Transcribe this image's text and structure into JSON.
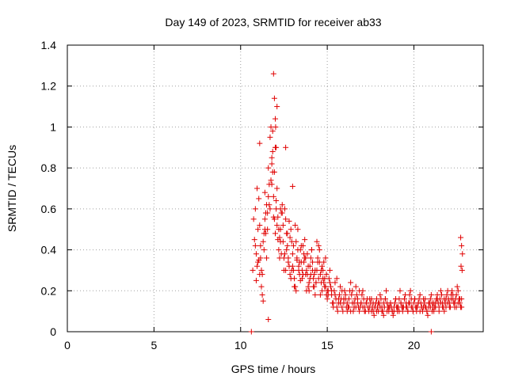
{
  "chart_data": {
    "type": "scatter",
    "title": "Day 149 of 2023, SRMTID for receiver ab33",
    "xlabel": "GPS time / hours",
    "ylabel": "SRMTID / TECUs",
    "xlim": [
      0,
      24
    ],
    "ylim": [
      0,
      1.4
    ],
    "xticks": [
      0,
      5,
      10,
      15,
      20
    ],
    "yticks": [
      0,
      0.2,
      0.4,
      0.6,
      0.8,
      1,
      1.2,
      1.4
    ],
    "xtick_labels": [
      "0",
      "5",
      "10",
      "15",
      "20"
    ],
    "ytick_labels": [
      "0",
      "0.2",
      "0.4",
      "0.6",
      "0.8",
      "1",
      "1.2",
      "1.4"
    ],
    "grid": true,
    "marker": "+",
    "color": "#e00000",
    "series": [
      {
        "name": "SRMTID",
        "x": [
          10.62,
          10.7,
          10.75,
          10.8,
          10.85,
          10.9,
          10.95,
          11.0,
          11.05,
          11.1,
          11.15,
          11.2,
          11.25,
          11.3,
          11.35,
          11.4,
          11.45,
          11.5,
          11.55,
          11.6,
          11.65,
          11.7,
          11.75,
          11.8,
          11.85,
          11.9,
          11.95,
          12.0,
          12.05,
          12.1,
          12.15,
          12.2,
          12.25,
          12.3,
          12.35,
          12.4,
          12.45,
          12.5,
          12.55,
          12.6,
          12.65,
          12.7,
          12.75,
          12.8,
          12.85,
          12.9,
          12.95,
          13.0,
          13.05,
          13.1,
          13.15,
          13.2,
          13.25,
          13.3,
          13.35,
          13.4,
          13.45,
          13.5,
          13.55,
          13.6,
          13.65,
          13.7,
          13.75,
          13.8,
          13.85,
          13.9,
          13.95,
          14.0,
          14.05,
          14.1,
          14.15,
          14.2,
          14.25,
          14.3,
          14.35,
          14.4,
          14.45,
          14.5,
          14.55,
          14.6,
          14.65,
          14.7,
          14.75,
          14.8,
          14.85,
          14.9,
          14.95,
          15.0,
          15.05,
          15.1,
          15.15,
          15.2,
          15.25,
          15.3,
          15.35,
          15.4,
          15.45,
          15.5,
          15.55,
          15.6,
          15.65,
          15.7,
          15.75,
          15.8,
          15.85,
          15.9,
          15.95,
          16.0,
          16.05,
          16.1,
          16.15,
          16.2,
          16.25,
          16.3,
          16.35,
          16.4,
          16.45,
          16.5,
          16.55,
          16.6,
          16.65,
          16.7,
          16.75,
          16.8,
          16.85,
          16.9,
          16.95,
          17.0,
          17.05,
          17.1,
          17.15,
          17.2,
          17.25,
          17.3,
          17.35,
          17.4,
          17.45,
          17.5,
          17.55,
          17.6,
          17.65,
          17.7,
          17.75,
          17.8,
          17.85,
          17.9,
          17.95,
          18.0,
          18.05,
          18.1,
          18.15,
          18.2,
          18.25,
          18.3,
          18.35,
          18.4,
          18.45,
          18.5,
          18.55,
          18.6,
          18.65,
          18.7,
          18.75,
          18.8,
          18.85,
          18.9,
          18.95,
          19.0,
          19.05,
          19.1,
          19.15,
          19.2,
          19.25,
          19.3,
          19.35,
          19.4,
          19.45,
          19.5,
          19.55,
          19.6,
          19.65,
          19.7,
          19.75,
          19.8,
          19.85,
          19.9,
          19.95,
          20.0,
          20.05,
          20.1,
          20.15,
          20.2,
          20.25,
          20.3,
          20.35,
          20.4,
          20.45,
          20.5,
          20.55,
          20.6,
          20.65,
          20.7,
          20.75,
          20.8,
          20.85,
          20.9,
          20.95,
          21.0,
          21.05,
          21.1,
          21.15,
          21.2,
          21.25,
          21.3,
          21.35,
          21.4,
          21.45,
          21.5,
          21.55,
          21.6,
          21.65,
          21.7,
          21.75,
          21.8,
          21.85,
          21.9,
          21.95,
          22.0,
          22.05,
          22.1,
          22.15,
          22.2,
          22.25,
          22.3,
          22.35,
          22.4,
          22.45,
          22.5,
          22.55,
          22.6,
          22.65,
          22.7,
          22.75,
          10.85,
          10.95,
          11.05,
          11.15,
          11.25,
          11.35,
          11.45,
          11.55,
          11.65,
          11.75,
          11.85,
          11.95,
          12.05,
          12.15,
          12.25,
          12.35,
          12.45,
          12.55,
          12.65,
          12.75,
          12.85,
          12.95,
          13.05,
          13.15,
          13.25,
          13.35,
          13.45,
          13.55,
          13.65,
          13.75,
          13.85,
          13.95,
          14.05,
          14.15,
          14.25,
          14.35,
          14.45,
          14.55,
          14.65,
          14.75,
          14.85,
          14.95,
          15.05,
          15.15,
          15.25,
          15.35,
          15.45,
          15.55,
          15.65,
          15.75,
          15.85,
          15.95,
          16.05,
          16.15,
          16.25,
          16.35,
          16.45,
          16.55,
          16.65,
          16.75,
          16.85,
          16.95,
          17.05,
          17.15,
          17.25,
          17.35,
          17.45,
          17.55,
          17.65,
          17.75,
          17.85,
          17.95,
          18.05,
          18.15,
          18.25,
          18.35,
          18.45,
          18.55,
          18.65,
          18.75,
          18.85,
          18.95,
          19.05,
          19.15,
          19.25,
          19.35,
          19.45,
          19.55,
          19.65,
          19.75,
          19.85,
          19.95,
          20.05,
          20.15,
          20.25,
          20.35,
          20.45,
          20.55,
          20.65,
          20.75,
          20.85,
          20.95,
          21.05,
          21.15,
          21.25,
          21.35,
          21.45,
          21.55,
          21.65,
          21.75,
          21.85,
          21.95,
          22.05,
          22.15,
          22.25,
          22.35,
          22.45,
          22.55,
          22.65,
          22.75,
          10.9,
          11.0,
          11.1,
          11.2,
          11.3,
          11.4,
          11.5,
          11.6,
          11.7,
          11.8,
          11.9,
          12.0,
          12.1,
          12.2,
          12.3,
          12.4,
          12.5,
          12.6,
          12.7,
          12.8,
          12.9,
          13.0,
          13.1,
          13.2,
          13.3,
          13.4,
          13.5,
          13.6,
          13.7,
          13.8,
          13.9,
          14.0,
          14.1,
          14.2,
          14.3,
          14.4,
          14.5,
          14.6,
          14.7,
          14.8,
          14.9,
          15.0,
          11.1,
          11.4,
          11.6,
          11.8,
          11.85,
          11.9,
          11.95,
          12.0,
          12.02,
          12.05,
          12.1,
          12.3,
          12.6,
          13.0,
          21.0,
          22.7,
          22.75,
          22.8,
          22.78,
          22.72
        ],
        "y": [
          0.0,
          0.3,
          0.55,
          0.45,
          0.6,
          0.38,
          0.7,
          0.5,
          0.35,
          0.28,
          0.42,
          0.22,
          0.18,
          0.15,
          0.4,
          0.55,
          0.48,
          0.62,
          0.58,
          0.8,
          0.72,
          0.95,
          1.0,
          0.85,
          0.78,
          0.66,
          0.55,
          0.48,
          0.6,
          0.52,
          0.45,
          0.4,
          0.36,
          0.5,
          0.58,
          0.62,
          0.44,
          0.3,
          0.38,
          0.55,
          0.48,
          0.42,
          0.36,
          0.32,
          0.28,
          0.5,
          0.44,
          0.38,
          0.3,
          0.26,
          0.22,
          0.2,
          0.35,
          0.4,
          0.32,
          0.28,
          0.25,
          0.34,
          0.3,
          0.42,
          0.38,
          0.45,
          0.36,
          0.3,
          0.28,
          0.22,
          0.2,
          0.32,
          0.36,
          0.4,
          0.3,
          0.26,
          0.22,
          0.18,
          0.24,
          0.3,
          0.36,
          0.42,
          0.34,
          0.28,
          0.24,
          0.2,
          0.3,
          0.34,
          0.26,
          0.22,
          0.18,
          0.16,
          0.2,
          0.26,
          0.3,
          0.22,
          0.18,
          0.14,
          0.12,
          0.2,
          0.24,
          0.16,
          0.12,
          0.1,
          0.14,
          0.18,
          0.22,
          0.16,
          0.12,
          0.1,
          0.14,
          0.2,
          0.16,
          0.12,
          0.1,
          0.12,
          0.16,
          0.2,
          0.24,
          0.18,
          0.14,
          0.1,
          0.12,
          0.16,
          0.22,
          0.18,
          0.14,
          0.12,
          0.1,
          0.12,
          0.14,
          0.18,
          0.2,
          0.16,
          0.12,
          0.1,
          0.14,
          0.16,
          0.12,
          0.1,
          0.12,
          0.14,
          0.16,
          0.12,
          0.1,
          0.08,
          0.12,
          0.14,
          0.16,
          0.12,
          0.1,
          0.14,
          0.18,
          0.16,
          0.12,
          0.1,
          0.08,
          0.12,
          0.16,
          0.2,
          0.14,
          0.12,
          0.1,
          0.12,
          0.14,
          0.12,
          0.1,
          0.08,
          0.1,
          0.14,
          0.16,
          0.12,
          0.1,
          0.12,
          0.16,
          0.2,
          0.14,
          0.12,
          0.1,
          0.12,
          0.16,
          0.18,
          0.14,
          0.12,
          0.1,
          0.14,
          0.18,
          0.2,
          0.16,
          0.12,
          0.1,
          0.14,
          0.16,
          0.12,
          0.1,
          0.12,
          0.14,
          0.16,
          0.18,
          0.14,
          0.12,
          0.1,
          0.12,
          0.14,
          0.16,
          0.12,
          0.1,
          0.08,
          0.12,
          0.14,
          0.16,
          0.18,
          0.14,
          0.12,
          0.1,
          0.12,
          0.14,
          0.16,
          0.18,
          0.14,
          0.12,
          0.16,
          0.2,
          0.18,
          0.14,
          0.12,
          0.1,
          0.14,
          0.16,
          0.18,
          0.2,
          0.16,
          0.14,
          0.12,
          0.18,
          0.2,
          0.16,
          0.14,
          0.12,
          0.16,
          0.18,
          0.22,
          0.2,
          0.16,
          0.14,
          0.12,
          0.16,
          0.42,
          0.32,
          0.65,
          0.36,
          0.28,
          0.48,
          0.58,
          0.5,
          0.62,
          0.74,
          0.88,
          0.78,
          0.64,
          0.56,
          0.46,
          0.38,
          0.52,
          0.6,
          0.4,
          0.34,
          0.46,
          0.3,
          0.42,
          0.52,
          0.36,
          0.3,
          0.4,
          0.26,
          0.34,
          0.28,
          0.38,
          0.24,
          0.28,
          0.34,
          0.28,
          0.24,
          0.34,
          0.4,
          0.3,
          0.26,
          0.22,
          0.28,
          0.18,
          0.24,
          0.2,
          0.14,
          0.18,
          0.26,
          0.16,
          0.14,
          0.2,
          0.16,
          0.18,
          0.14,
          0.12,
          0.1,
          0.2,
          0.14,
          0.12,
          0.16,
          0.2,
          0.14,
          0.12,
          0.1,
          0.14,
          0.12,
          0.16,
          0.1,
          0.14,
          0.12,
          0.1,
          0.14,
          0.12,
          0.1,
          0.14,
          0.16,
          0.1,
          0.12,
          0.14,
          0.1,
          0.12,
          0.16,
          0.12,
          0.1,
          0.14,
          0.12,
          0.16,
          0.12,
          0.1,
          0.14,
          0.12,
          0.1,
          0.16,
          0.12,
          0.14,
          0.1,
          0.12,
          0.16,
          0.12,
          0.1,
          0.14,
          0.12,
          0.1,
          0.14,
          0.12,
          0.16,
          0.1,
          0.14,
          0.12,
          0.16,
          0.12,
          0.14,
          0.12,
          0.16,
          0.18,
          0.14,
          0.12,
          0.14,
          0.16,
          0.12,
          0.25,
          0.34,
          0.52,
          0.3,
          0.44,
          0.5,
          0.36,
          0.66,
          0.6,
          0.82,
          0.56,
          0.9,
          0.7,
          0.5,
          0.44,
          0.58,
          0.36,
          0.3,
          0.48,
          0.54,
          0.26,
          0.32,
          0.22,
          0.44,
          0.5,
          0.34,
          0.42,
          0.28,
          0.36,
          0.2,
          0.32,
          0.26,
          0.4,
          0.22,
          0.3,
          0.44,
          0.26,
          0.18,
          0.32,
          0.24,
          0.36,
          0.2,
          0.92,
          0.68,
          0.06,
          0.72,
          0.98,
          1.26,
          1.14,
          1.04,
          1.0,
          0.9,
          1.1,
          0.6,
          0.9,
          0.71,
          0.0,
          0.46,
          0.42,
          0.38,
          0.3,
          0.32
        ]
      }
    ]
  }
}
